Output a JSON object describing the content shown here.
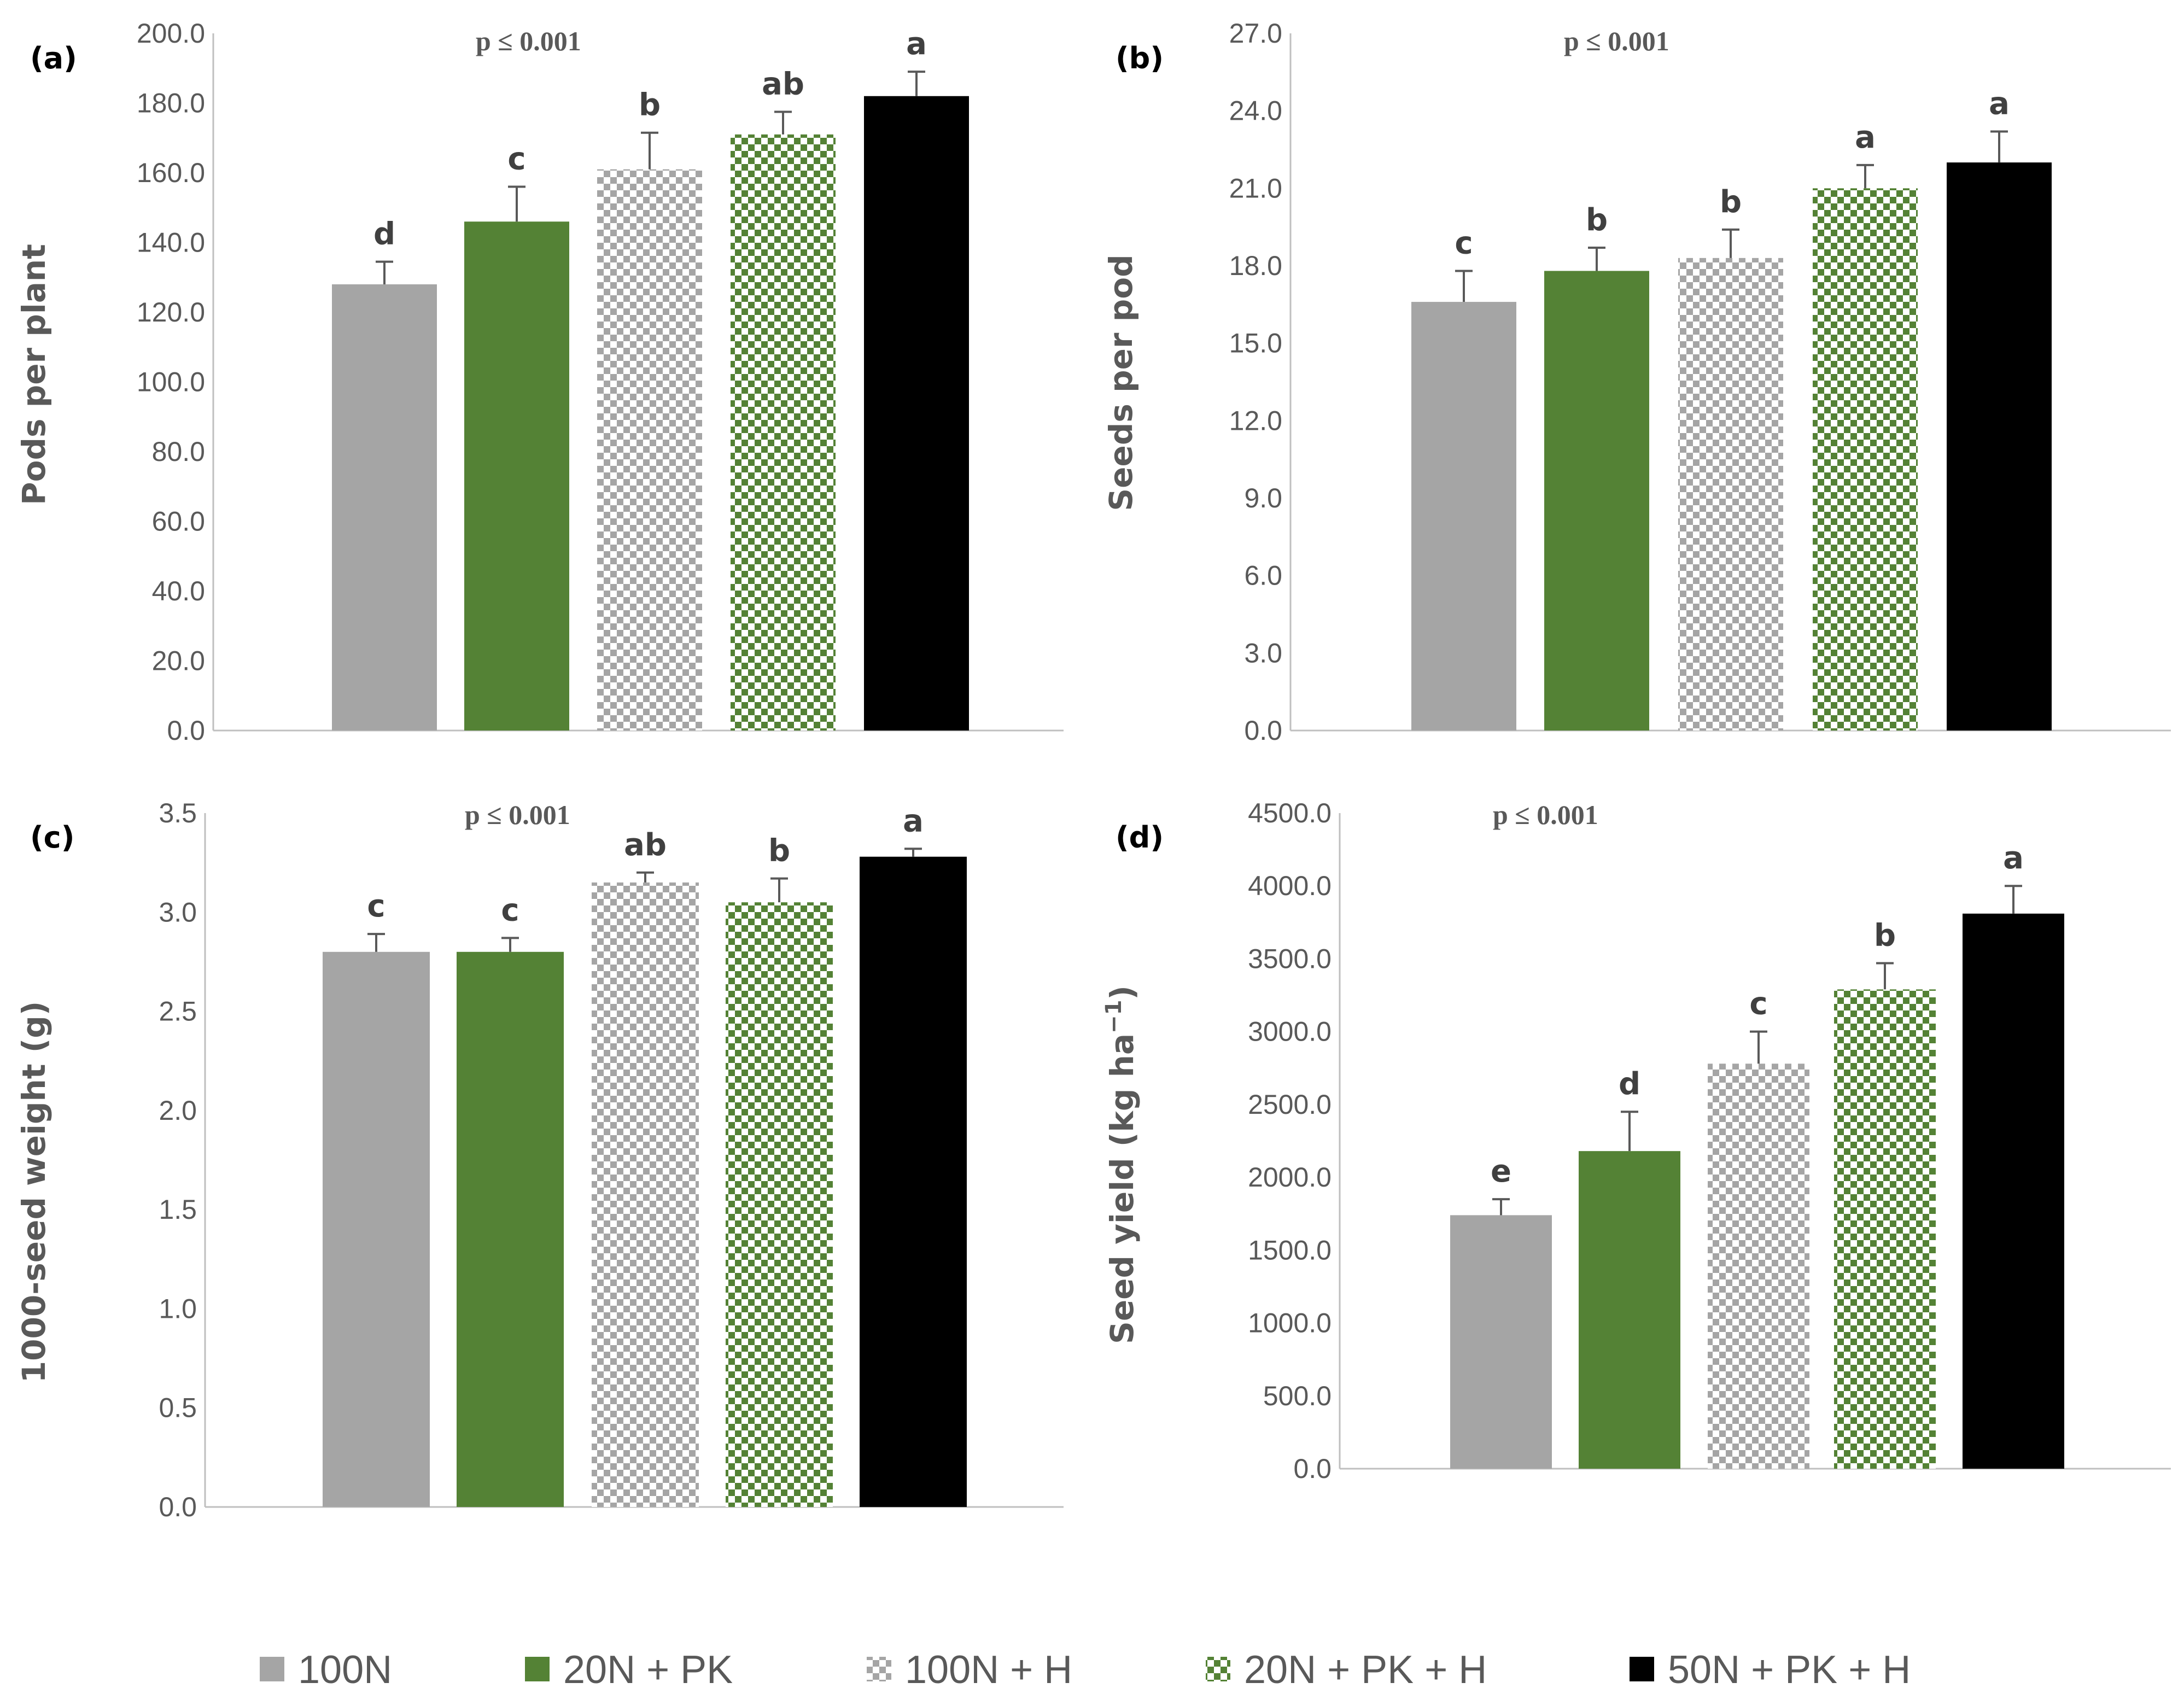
{
  "colors": {
    "100N": "#a5a5a5",
    "20N + PK": "#548235",
    "100N + H": "#a5a5a5",
    "20N + PK + H": "#548235",
    "50N + PK + H": "#000000"
  },
  "legend": {
    "items": [
      {
        "label": "100N",
        "pattern": "solid-gray"
      },
      {
        "label": "20N + PK",
        "pattern": "solid-green"
      },
      {
        "label": "100N + H",
        "pattern": "checker-gray"
      },
      {
        "label": "20N + PK + H",
        "pattern": "checker-green"
      },
      {
        "label": "50N + PK + H",
        "pattern": "solid-black"
      }
    ]
  },
  "chart_data": [
    {
      "type": "bar",
      "panel": "(a)",
      "p_label": "p ≤ 0.001",
      "ylabel": "Pods per plant",
      "ylim": [
        0,
        200
      ],
      "yticks": [
        "0.0",
        "20.0",
        "40.0",
        "60.0",
        "80.0",
        "100.0",
        "120.0",
        "140.0",
        "160.0",
        "180.0",
        "200.0"
      ],
      "categories": [
        "100N",
        "20N + PK",
        "100N + H",
        "20N + PK + H",
        "50N + PK + H"
      ],
      "values": [
        128,
        146,
        161,
        171,
        182
      ],
      "errors": [
        6.5,
        10,
        10.5,
        6.5,
        7
      ],
      "letters": [
        "d",
        "c",
        "b",
        "ab",
        "a"
      ]
    },
    {
      "type": "bar",
      "panel": "(b)",
      "p_label": "p ≤ 0.001",
      "ylabel": "Seeds per pod",
      "ylim": [
        0,
        27
      ],
      "yticks": [
        "0.0",
        "3.0",
        "6.0",
        "9.0",
        "12.0",
        "15.0",
        "18.0",
        "21.0",
        "24.0",
        "27.0"
      ],
      "categories": [
        "100N",
        "20N + PK",
        "100N + H",
        "20N + PK + H",
        "50N + PK + H"
      ],
      "values": [
        16.6,
        17.8,
        18.3,
        21.0,
        22.0
      ],
      "errors": [
        1.2,
        0.9,
        1.1,
        0.9,
        1.2
      ],
      "letters": [
        "c",
        "b",
        "b",
        "a",
        "a"
      ]
    },
    {
      "type": "bar",
      "panel": "(c)",
      "p_label": "p ≤ 0.001",
      "ylabel": "1000-seed weight (g)",
      "ylim": [
        0,
        3.5
      ],
      "yticks": [
        "0.0",
        "0.5",
        "1.0",
        "1.5",
        "2.0",
        "2.5",
        "3.0",
        "3.5"
      ],
      "categories": [
        "100N",
        "20N + PK",
        "100N + H",
        "20N + PK + H",
        "50N + PK + H"
      ],
      "values": [
        2.8,
        2.8,
        3.15,
        3.05,
        3.28
      ],
      "errors": [
        0.09,
        0.07,
        0.05,
        0.12,
        0.04
      ],
      "letters": [
        "c",
        "c",
        "ab",
        "b",
        "a"
      ]
    },
    {
      "type": "bar",
      "panel": "(d)",
      "p_label": "p ≤ 0.001",
      "ylabel": "Seed yield (kg ha",
      "ylabel_sup": "−1",
      "ylabel_end": ")",
      "ylim": [
        0,
        4500
      ],
      "yticks": [
        "0.0",
        "500.0",
        "1000.0",
        "1500.0",
        "2000.0",
        "2500.0",
        "3000.0",
        "3500.0",
        "4000.0",
        "4500.0"
      ],
      "categories": [
        "100N",
        "20N + PK",
        "100N + H",
        "20N + PK + H",
        "50N + PK + H"
      ],
      "values": [
        1740,
        2180,
        2780,
        3290,
        3810
      ],
      "errors": [
        110,
        270,
        220,
        180,
        190
      ],
      "letters": [
        "e",
        "d",
        "c",
        "b",
        "a"
      ]
    }
  ]
}
